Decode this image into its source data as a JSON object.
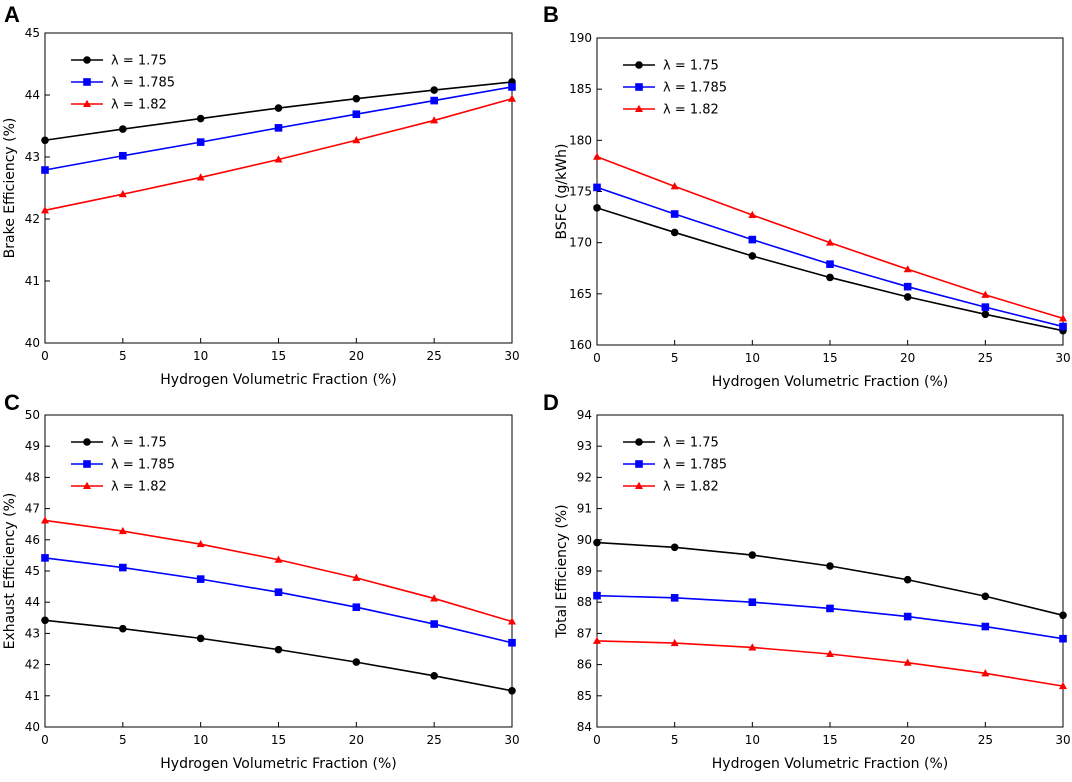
{
  "chart_data": [
    {
      "panel": "A",
      "type": "line",
      "xlabel": "Hydrogen Volumetric Fraction (%)",
      "ylabel": "Brake Efficiency (%)",
      "xlim": [
        0,
        30
      ],
      "ylim": [
        40,
        45
      ],
      "xticks": [
        0,
        5,
        10,
        15,
        20,
        25,
        30
      ],
      "yticks": [
        40,
        41,
        42,
        43,
        44,
        45
      ],
      "legend_position": "top-left",
      "x": [
        0,
        5,
        10,
        15,
        20,
        25,
        30
      ],
      "series": [
        {
          "name": "λ = 1.75",
          "color": "#000000",
          "marker": "circle",
          "values": [
            43.27,
            43.45,
            43.62,
            43.79,
            43.94,
            44.08,
            44.21
          ]
        },
        {
          "name": "λ = 1.785",
          "color": "#0000ff",
          "marker": "square",
          "values": [
            42.79,
            43.02,
            43.24,
            43.47,
            43.69,
            43.91,
            44.13
          ]
        },
        {
          "name": "λ = 1.82",
          "color": "#ff0000",
          "marker": "triangle",
          "values": [
            42.14,
            42.4,
            42.67,
            42.96,
            43.27,
            43.59,
            43.94
          ]
        }
      ]
    },
    {
      "panel": "B",
      "type": "line",
      "xlabel": "Hydrogen Volumetric Fraction (%)",
      "ylabel": "BSFC (g/kWh)",
      "xlim": [
        0,
        30
      ],
      "ylim": [
        160,
        190
      ],
      "xticks": [
        0,
        5,
        10,
        15,
        20,
        25,
        30
      ],
      "yticks": [
        160,
        165,
        170,
        175,
        180,
        185,
        190
      ],
      "legend_position": "top-left",
      "x": [
        0,
        5,
        10,
        15,
        20,
        25,
        30
      ],
      "series": [
        {
          "name": "λ = 1.75",
          "color": "#000000",
          "marker": "circle",
          "values": [
            173.4,
            171.0,
            168.7,
            166.6,
            164.7,
            163.0,
            161.4
          ]
        },
        {
          "name": "λ = 1.785",
          "color": "#0000ff",
          "marker": "square",
          "values": [
            175.4,
            172.8,
            170.3,
            167.9,
            165.7,
            163.7,
            161.8
          ]
        },
        {
          "name": "λ = 1.82",
          "color": "#ff0000",
          "marker": "triangle",
          "values": [
            178.4,
            175.5,
            172.7,
            170.0,
            167.4,
            164.9,
            162.6
          ]
        }
      ]
    },
    {
      "panel": "C",
      "type": "line",
      "xlabel": "Hydrogen Volumetric Fraction (%)",
      "ylabel": "Exhaust Efficiency (%)",
      "xlim": [
        0,
        30
      ],
      "ylim": [
        40,
        50
      ],
      "xticks": [
        0,
        5,
        10,
        15,
        20,
        25,
        30
      ],
      "yticks": [
        40,
        41,
        42,
        43,
        44,
        45,
        46,
        47,
        48,
        49,
        50
      ],
      "legend_position": "top-left",
      "x": [
        0,
        5,
        10,
        15,
        20,
        25,
        30
      ],
      "series": [
        {
          "name": "λ = 1.75",
          "color": "#000000",
          "marker": "circle",
          "values": [
            43.42,
            43.15,
            42.84,
            42.48,
            42.08,
            41.64,
            41.16
          ]
        },
        {
          "name": "λ = 1.785",
          "color": "#0000ff",
          "marker": "square",
          "values": [
            45.42,
            45.11,
            44.74,
            44.32,
            43.84,
            43.3,
            42.7
          ]
        },
        {
          "name": "λ = 1.82",
          "color": "#ff0000",
          "marker": "triangle",
          "values": [
            46.62,
            46.28,
            45.86,
            45.36,
            44.78,
            44.12,
            43.38
          ]
        }
      ]
    },
    {
      "panel": "D",
      "type": "line",
      "xlabel": "Hydrogen Volumetric Fraction (%)",
      "ylabel": "Total Efficiency (%)",
      "xlim": [
        0,
        30
      ],
      "ylim": [
        84,
        94
      ],
      "xticks": [
        0,
        5,
        10,
        15,
        20,
        25,
        30
      ],
      "yticks": [
        84,
        85,
        86,
        87,
        88,
        89,
        90,
        91,
        92,
        93,
        94
      ],
      "legend_position": "top-left",
      "x": [
        0,
        5,
        10,
        15,
        20,
        25,
        30
      ],
      "series": [
        {
          "name": "λ = 1.75",
          "color": "#000000",
          "marker": "circle",
          "values": [
            89.91,
            89.76,
            89.51,
            89.16,
            88.72,
            88.19,
            87.58
          ]
        },
        {
          "name": "λ = 1.785",
          "color": "#0000ff",
          "marker": "square",
          "values": [
            88.21,
            88.14,
            88.0,
            87.8,
            87.54,
            87.22,
            86.83
          ]
        },
        {
          "name": "λ = 1.82",
          "color": "#ff0000",
          "marker": "triangle",
          "values": [
            86.76,
            86.69,
            86.55,
            86.34,
            86.06,
            85.72,
            85.31
          ]
        }
      ]
    }
  ]
}
